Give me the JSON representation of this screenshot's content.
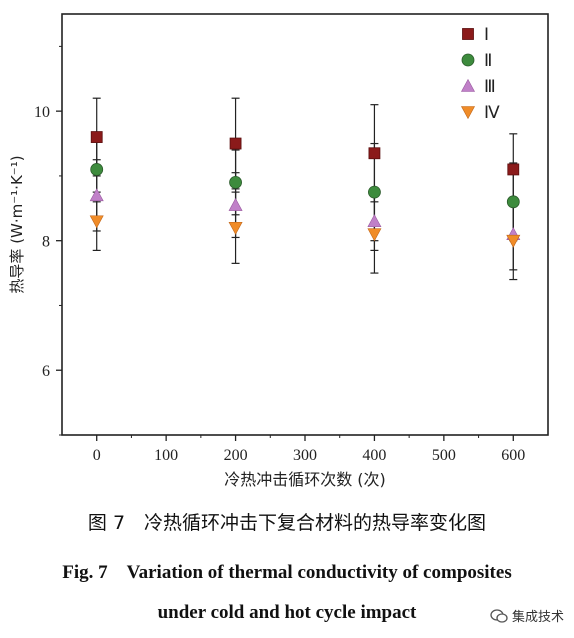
{
  "chart_data": {
    "type": "scatter",
    "xlabel": "冷热冲击循环次数 (次)",
    "ylabel": "热导率 (W·m⁻¹·K⁻¹)",
    "xlim": [
      -50,
      650
    ],
    "ylim": [
      5,
      11.5
    ],
    "xticks": [
      "0",
      "100",
      "200",
      "300",
      "400",
      "500",
      "600"
    ],
    "yticks": [
      "6",
      "8",
      "10"
    ],
    "grid": false,
    "legend_position": "top-right",
    "series": [
      {
        "name": "Ⅰ",
        "marker": "square",
        "color": "#8b1a1a",
        "x": [
          0,
          200,
          400,
          600
        ],
        "y": [
          9.6,
          9.5,
          9.35,
          9.1
        ],
        "err": [
          0.6,
          0.7,
          0.75,
          0.55
        ]
      },
      {
        "name": "Ⅱ",
        "marker": "circle",
        "color": "#3d8b3d",
        "x": [
          0,
          200,
          400,
          600
        ],
        "y": [
          9.1,
          8.9,
          8.75,
          8.6
        ],
        "err": [
          0.5,
          0.5,
          0.75,
          0.6
        ]
      },
      {
        "name": "Ⅲ",
        "marker": "triangle-up",
        "color": "#c080c8",
        "x": [
          0,
          200,
          400,
          600
        ],
        "y": [
          8.7,
          8.55,
          8.3,
          8.1
        ],
        "err": [
          0.55,
          0.5,
          0.45,
          0.55
        ]
      },
      {
        "name": "Ⅳ",
        "marker": "triangle-down",
        "color": "#f08c28",
        "x": [
          0,
          200,
          400,
          600
        ],
        "y": [
          8.3,
          8.2,
          8.1,
          8.0
        ],
        "err": [
          0.45,
          0.55,
          0.6,
          0.6
        ]
      }
    ]
  },
  "caption": {
    "cn": "图 7　冷热循环冲击下复合材料的热导率变化图",
    "en_line1": "Fig. 7　Variation of thermal conductivity of composites",
    "en_line2": "under cold and hot cycle impact"
  },
  "watermark": {
    "text": "集成技术"
  }
}
